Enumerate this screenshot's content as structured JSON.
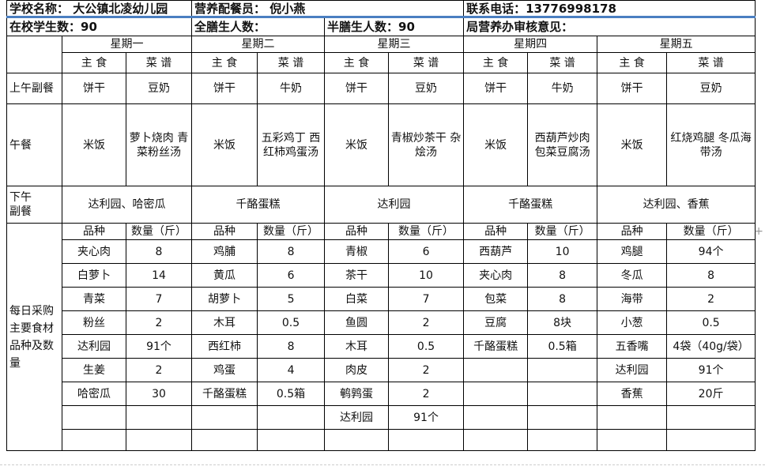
{
  "header": {
    "school": "学校名称：  大公镇北凌幼儿园",
    "staff": "营养配餐员：  倪小燕",
    "phone": "联系电话：13776998178",
    "students": "在校学生数：90",
    "full_board": "全膳生人数：",
    "half_board": "半膳生人数：90",
    "review": "局营养办审核意见："
  },
  "days": [
    "星期一",
    "星期二",
    "星期三",
    "星期四",
    "星期五"
  ],
  "sub_headers": {
    "staple": "主 食",
    "menu": "菜 谱",
    "staple_mon": "主食"
  },
  "rows": {
    "morning_label": "上午副餐",
    "morning": [
      [
        "饼干",
        "豆奶"
      ],
      [
        "饼干",
        "牛奶"
      ],
      [
        "饼干",
        "豆奶"
      ],
      [
        "饼干",
        "牛奶"
      ],
      [
        "饼干",
        "豆奶"
      ]
    ],
    "lunch_label": "午餐",
    "lunch": [
      [
        "米饭",
        "萝卜烧肉 青菜粉丝汤"
      ],
      [
        "米饭",
        "五彩鸡丁 西红柿鸡蛋汤"
      ],
      [
        "米饭",
        "青椒炒茶干 杂烩汤"
      ],
      [
        "米饭",
        "西葫芦炒肉 包菜豆腐汤"
      ],
      [
        "米饭",
        "红烧鸡腿 冬瓜海带汤"
      ]
    ],
    "afternoon_label": "下午副餐",
    "afternoon": [
      "达利园、哈密瓜",
      "千酪蛋糕",
      "达利园",
      "千酪蛋糕",
      "达利园、香蕉"
    ]
  },
  "purchase": {
    "label": "每日采购主要食材品种及数量",
    "col_item": "品种",
    "col_qty": "数量（斤）",
    "rows": [
      [
        [
          "夹心肉",
          "8"
        ],
        [
          "鸡脯",
          "8"
        ],
        [
          "青椒",
          "6"
        ],
        [
          "西葫芦",
          "10"
        ],
        [
          "鸡腿",
          "94个"
        ]
      ],
      [
        [
          "白萝卜",
          "14"
        ],
        [
          "黄瓜",
          "6"
        ],
        [
          "茶干",
          "10"
        ],
        [
          "夹心肉",
          "8"
        ],
        [
          "冬瓜",
          "8"
        ]
      ],
      [
        [
          "青菜",
          "7"
        ],
        [
          "胡萝卜",
          "5"
        ],
        [
          "白菜",
          "7"
        ],
        [
          "包菜",
          "8"
        ],
        [
          "海带",
          "2"
        ]
      ],
      [
        [
          "粉丝",
          "2"
        ],
        [
          "木耳",
          "0.5"
        ],
        [
          "鱼圆",
          "2"
        ],
        [
          "豆腐",
          "8块"
        ],
        [
          "小葱",
          "0.5"
        ]
      ],
      [
        [
          "达利园",
          "91个"
        ],
        [
          "西红柿",
          "8"
        ],
        [
          "木耳",
          "0.5"
        ],
        [
          "千酪蛋糕",
          "0.5箱"
        ],
        [
          "五香嘴",
          "4袋（40g/袋）"
        ]
      ],
      [
        [
          "生姜",
          "2"
        ],
        [
          "鸡蛋",
          "4"
        ],
        [
          "肉皮",
          "2"
        ],
        [
          "",
          ""
        ],
        [
          "达利园",
          "91个"
        ]
      ],
      [
        [
          "哈密瓜",
          "30"
        ],
        [
          "千酪蛋糕",
          "0.5箱"
        ],
        [
          "鹌鹑蛋",
          "2"
        ],
        [
          "",
          ""
        ],
        [
          "香蕉",
          "20斤"
        ]
      ],
      [
        [
          "",
          ""
        ],
        [
          "",
          ""
        ],
        [
          "达利园",
          "91个"
        ],
        [
          "",
          ""
        ],
        [
          "",
          ""
        ]
      ],
      [
        [
          "",
          ""
        ],
        [
          "",
          ""
        ],
        [
          "",
          ""
        ],
        [
          "",
          ""
        ],
        [
          "",
          ""
        ]
      ]
    ]
  }
}
